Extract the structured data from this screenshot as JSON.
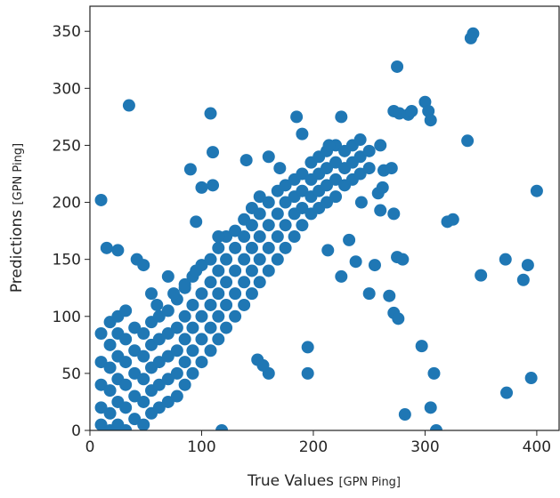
{
  "chart_data": {
    "type": "scatter",
    "xlabel": "True Values",
    "xlabel_unit": "[GPN Ping]",
    "ylabel": "Predictions",
    "ylabel_unit": "[GPN Ping]",
    "xlim": [
      0,
      420
    ],
    "ylim": [
      0,
      372
    ],
    "xticks": [
      0,
      100,
      200,
      300,
      400
    ],
    "yticks": [
      0,
      50,
      100,
      150,
      200,
      250,
      300,
      350
    ],
    "grid": false,
    "series": [
      {
        "color": "#1f77b4",
        "x": [
          10,
          10,
          10,
          10,
          10,
          18,
          18,
          18,
          18,
          18,
          18,
          25,
          25,
          25,
          25,
          25,
          25,
          32,
          32,
          32,
          32,
          32,
          32,
          40,
          40,
          40,
          40,
          40,
          48,
          48,
          48,
          48,
          48,
          55,
          55,
          55,
          55,
          55,
          62,
          62,
          62,
          62,
          62,
          70,
          70,
          70,
          70,
          70,
          78,
          78,
          78,
          78,
          78,
          85,
          85,
          85,
          85,
          85,
          92,
          92,
          92,
          92,
          92,
          100,
          100,
          100,
          100,
          100,
          108,
          108,
          108,
          108,
          108,
          115,
          115,
          115,
          115,
          115,
          122,
          122,
          122,
          122,
          122,
          130,
          130,
          130,
          130,
          130,
          138,
          138,
          138,
          138,
          138,
          145,
          145,
          145,
          145,
          145,
          152,
          152,
          152,
          152,
          152,
          160,
          160,
          160,
          160,
          168,
          168,
          168,
          168,
          175,
          175,
          175,
          175,
          183,
          183,
          183,
          183,
          190,
          190,
          190,
          190,
          198,
          198,
          198,
          198,
          205,
          205,
          205,
          205,
          212,
          212,
          212,
          212,
          220,
          220,
          220,
          220,
          228,
          228,
          228,
          235,
          235,
          235,
          242,
          242,
          242,
          250,
          250,
          343,
          341,
          275,
          35,
          108,
          300,
          303,
          305,
          272,
          277,
          285,
          288,
          225,
          185,
          338,
          110,
          90,
          320,
          325,
          400,
          272,
          275,
          280,
          372,
          392,
          388,
          350,
          255,
          238,
          250,
          268,
          272,
          276,
          297,
          308,
          282,
          305,
          310,
          373,
          395,
          195,
          195,
          160,
          155,
          150,
          225,
          213,
          232,
          243,
          258,
          260,
          263,
          270,
          260,
          262,
          214,
          190,
          160,
          170,
          140,
          100,
          110,
          115,
          95,
          118,
          10,
          15,
          25,
          42,
          48,
          55,
          60,
          70,
          75,
          95,
          85
        ],
        "values": [
          5,
          20,
          40,
          60,
          85,
          0,
          15,
          35,
          55,
          75,
          95,
          5,
          25,
          45,
          65,
          85,
          100,
          0,
          20,
          40,
          60,
          80,
          105,
          10,
          30,
          50,
          70,
          90,
          5,
          25,
          45,
          65,
          85,
          15,
          35,
          55,
          75,
          95,
          20,
          40,
          60,
          80,
          100,
          25,
          45,
          65,
          85,
          105,
          30,
          50,
          70,
          90,
          115,
          40,
          60,
          80,
          100,
          125,
          50,
          70,
          90,
          110,
          135,
          60,
          80,
          100,
          120,
          145,
          70,
          90,
          110,
          130,
          150,
          80,
          100,
          120,
          140,
          160,
          90,
          110,
          130,
          150,
          170,
          100,
          120,
          140,
          160,
          175,
          110,
          130,
          150,
          170,
          185,
          120,
          140,
          160,
          180,
          195,
          130,
          150,
          170,
          190,
          205,
          140,
          160,
          180,
          200,
          150,
          170,
          190,
          210,
          160,
          180,
          200,
          215,
          170,
          190,
          205,
          220,
          180,
          195,
          210,
          225,
          190,
          205,
          220,
          235,
          195,
          210,
          225,
          240,
          200,
          215,
          230,
          245,
          205,
          220,
          235,
          250,
          215,
          230,
          245,
          220,
          235,
          250,
          225,
          240,
          255,
          230,
          245,
          348,
          344,
          319,
          285,
          278,
          288,
          280,
          272,
          280,
          278,
          277,
          280,
          275,
          275,
          254,
          244,
          229,
          183,
          185,
          210,
          190,
          152,
          150,
          150,
          145,
          132,
          136,
          145,
          148,
          120,
          118,
          103,
          98,
          74,
          50,
          14,
          20,
          0,
          33,
          46,
          73,
          50,
          50,
          57,
          62,
          135,
          158,
          167,
          200,
          208,
          193,
          228,
          230,
          250,
          213,
          250,
          260,
          240,
          230,
          237,
          213,
          215,
          170,
          183,
          0,
          202,
          160,
          158,
          150,
          145,
          120,
          110,
          135,
          120,
          140,
          128
        ]
      }
    ]
  }
}
